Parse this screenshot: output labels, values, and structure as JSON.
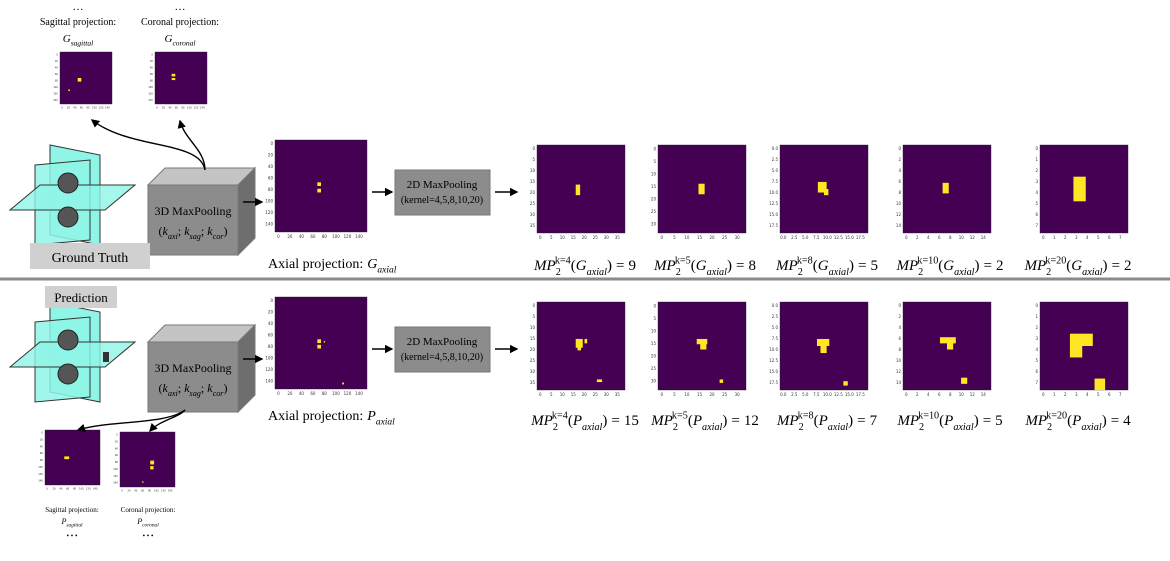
{
  "ground_truth": {
    "label": "Ground Truth",
    "symbol": "G",
    "ellipsis": "…",
    "sagittal": {
      "caption": "Sagittal projection:",
      "subscript": "sagittal"
    },
    "coronal": {
      "caption": "Coronal projection:",
      "subscript": "coronal"
    },
    "axial": {
      "caption": "Axial projection:",
      "subscript": "axial"
    },
    "results": [
      {
        "superscript": "k=4",
        "value": 9
      },
      {
        "superscript": "k=5",
        "value": 8
      },
      {
        "superscript": "k=8",
        "value": 5
      },
      {
        "superscript": "k=10",
        "value": 2
      },
      {
        "superscript": "k=20",
        "value": 2
      }
    ]
  },
  "prediction": {
    "label": "Prediction",
    "symbol": "P",
    "ellipsis": "• • •",
    "sagittal": {
      "caption": "Sagittal projection:",
      "subscript": "sagittal"
    },
    "coronal": {
      "caption": "Coronal projection:",
      "subscript": "coronal"
    },
    "axial": {
      "caption": "Axial projection:",
      "subscript": "axial"
    },
    "results": [
      {
        "superscript": "k=4",
        "value": 15
      },
      {
        "superscript": "k=5",
        "value": 12
      },
      {
        "superscript": "k=8",
        "value": 7
      },
      {
        "superscript": "k=10",
        "value": 5
      },
      {
        "superscript": "k=20",
        "value": 4
      }
    ]
  },
  "pool3d": {
    "title": "3D MaxPooling",
    "open": "(",
    "symbol": "k",
    "subscripts": [
      "axi",
      "sag",
      "cor"
    ],
    "separator": ";",
    "close": ")"
  },
  "pool2d": {
    "title": "2D MaxPooling",
    "kernels": "(kernel=4,5,8,10,20)"
  },
  "mp": {
    "symbol": "MP",
    "subscript": "2",
    "open": "(",
    "close": ")",
    "equals": "="
  },
  "tick_sets": {
    "proj": [
      "0",
      "20",
      "40",
      "60",
      "80",
      "100",
      "120",
      "140"
    ],
    "k4": [
      "0",
      "5",
      "10",
      "15",
      "20",
      "25",
      "30",
      "35"
    ],
    "k5": [
      "0",
      "5",
      "10",
      "15",
      "20",
      "25",
      "30"
    ],
    "k8": [
      "0.0",
      "2.5",
      "5.0",
      "7.5",
      "10.0",
      "12.5",
      "15.0",
      "17.5"
    ],
    "k10": [
      "0",
      "2",
      "4",
      "6",
      "8",
      "10",
      "12",
      "14"
    ],
    "k20": [
      "0",
      "1",
      "2",
      "3",
      "4",
      "5",
      "6",
      "7"
    ]
  }
}
